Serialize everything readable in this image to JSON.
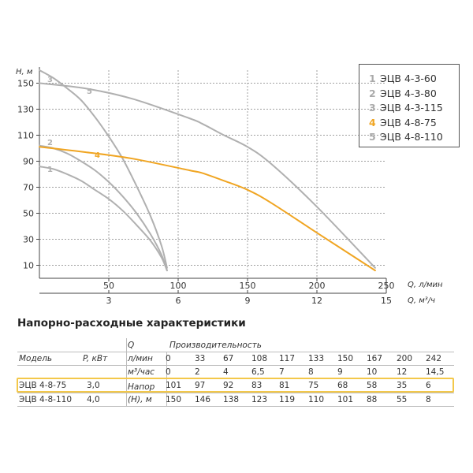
{
  "chart_data": {
    "type": "line",
    "y_axis": {
      "label": "H, м",
      "ticks": [
        10,
        30,
        50,
        70,
        90,
        110,
        130,
        150
      ],
      "range": [
        0,
        160
      ]
    },
    "x_axis_lpm": {
      "label": "Q, л/мин",
      "ticks": [
        50,
        100,
        150,
        200,
        250
      ],
      "range": [
        0,
        250
      ]
    },
    "x_axis_m3h": {
      "label": "Q, м³/ч",
      "ticks": [
        3,
        6,
        9,
        12,
        15
      ],
      "range": [
        0,
        15
      ]
    },
    "series": [
      {
        "id": "1",
        "name": "ЭЦВ 4-3-60",
        "color": "#b0b0b0",
        "x": [
          0,
          10,
          20,
          30,
          40,
          50,
          60,
          70,
          80,
          88,
          92
        ],
        "y": [
          86,
          84,
          80,
          75,
          68,
          61,
          52,
          41,
          29,
          16,
          6
        ]
      },
      {
        "id": "2",
        "name": "ЭЦВ 4-3-80",
        "color": "#b0b0b0",
        "x": [
          0,
          10,
          20,
          30,
          40,
          50,
          60,
          70,
          80,
          88,
          92
        ],
        "y": [
          102,
          100,
          96,
          90,
          83,
          74,
          63,
          50,
          34,
          18,
          6
        ]
      },
      {
        "id": "3",
        "name": "ЭЦВ 4-3-115",
        "color": "#b0b0b0",
        "x": [
          0,
          10,
          20,
          30,
          40,
          50,
          60,
          70,
          80,
          88,
          92
        ],
        "y": [
          160,
          154,
          146,
          137,
          124,
          109,
          92,
          71,
          48,
          25,
          8
        ]
      },
      {
        "id": "4",
        "name": "ЭЦВ 4-8-75",
        "color": "#f0a522",
        "x": [
          0,
          33,
          67,
          108,
          117,
          133,
          150,
          167,
          200,
          242
        ],
        "y": [
          101,
          97,
          92,
          83,
          81,
          75,
          68,
          58,
          35,
          6
        ]
      },
      {
        "id": "5",
        "name": "ЭЦВ 4-8-110",
        "color": "#b0b0b0",
        "x": [
          0,
          33,
          67,
          108,
          117,
          133,
          150,
          167,
          200,
          242
        ],
        "y": [
          150,
          146,
          138,
          123,
          119,
          110,
          101,
          88,
          55,
          8
        ]
      }
    ]
  },
  "legend": [
    {
      "num": "1",
      "name": "ЭЦВ 4-3-60"
    },
    {
      "num": "2",
      "name": "ЭЦВ 4-3-80"
    },
    {
      "num": "3",
      "name": "ЭЦВ 4-3-115"
    },
    {
      "num": "4",
      "name": "ЭЦВ 4-8-75"
    },
    {
      "num": "5",
      "name": "ЭЦВ 4-8-110"
    }
  ],
  "table": {
    "title": "Напорно-расходные характеристики",
    "col_model": "Модель",
    "col_power": "P, кВт",
    "col_q": "Q",
    "col_productivity": "Производительность",
    "unit_lpm": "л/мин",
    "unit_m3h": "м³/час",
    "head_label_1": "Напор",
    "head_label_2": "(H), м",
    "flow_lpm": [
      "0",
      "33",
      "67",
      "108",
      "117",
      "133",
      "150",
      "167",
      "200",
      "242"
    ],
    "flow_m3h": [
      "0",
      "2",
      "4",
      "6,5",
      "7",
      "8",
      "9",
      "10",
      "12",
      "14,5"
    ],
    "rows": [
      {
        "model": "ЭЦВ 4-8-75",
        "power": "3,0",
        "heads": [
          "101",
          "97",
          "92",
          "83",
          "81",
          "75",
          "68",
          "58",
          "35",
          "6"
        ]
      },
      {
        "model": "ЭЦВ 4-8-110",
        "power": "4,0",
        "heads": [
          "150",
          "146",
          "138",
          "123",
          "119",
          "110",
          "101",
          "88",
          "55",
          "8"
        ]
      }
    ]
  }
}
